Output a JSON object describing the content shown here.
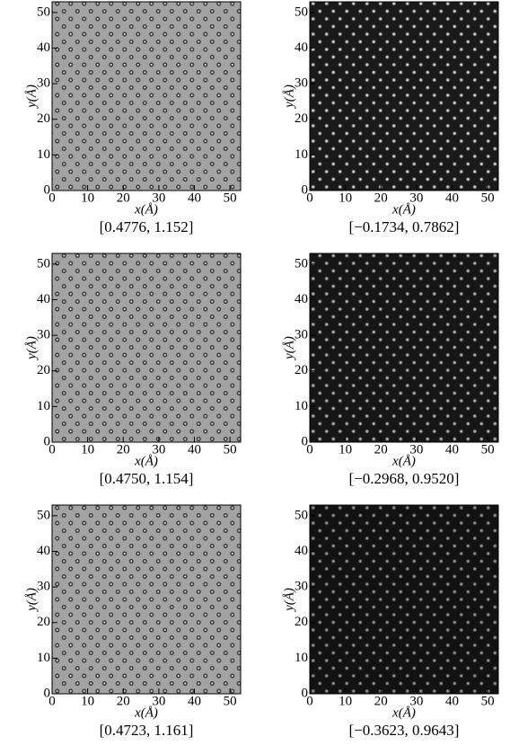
{
  "chart_data": [
    {
      "type": "image",
      "xlabel": "x(Å)",
      "ylabel": "y(Å)",
      "caption": "[0.4776, 1.152]",
      "xlim": [
        0,
        53
      ],
      "ylim": [
        0,
        53
      ],
      "xticks": [
        0,
        10,
        20,
        30,
        40,
        50
      ],
      "yticks": [
        0,
        10,
        20,
        30,
        40,
        50
      ]
    },
    {
      "type": "image",
      "xlabel": "x(Å)",
      "ylabel": "y(Å)",
      "caption": "[−0.1734, 0.7862]",
      "xlim": [
        0,
        53
      ],
      "ylim": [
        0,
        53
      ],
      "xticks": [
        0,
        10,
        20,
        30,
        40,
        50
      ],
      "yticks": [
        0,
        10,
        20,
        30,
        40,
        50
      ]
    },
    {
      "type": "image",
      "xlabel": "x(Å)",
      "ylabel": "y(Å)",
      "caption": "[0.4750, 1.154]",
      "xlim": [
        0,
        53
      ],
      "ylim": [
        0,
        53
      ],
      "xticks": [
        0,
        10,
        20,
        30,
        40,
        50
      ],
      "yticks": [
        0,
        10,
        20,
        30,
        40,
        50
      ]
    },
    {
      "type": "image",
      "xlabel": "x(Å)",
      "ylabel": "y(Å)",
      "caption": "[−0.2968, 0.9520]",
      "xlim": [
        0,
        53
      ],
      "ylim": [
        0,
        53
      ],
      "xticks": [
        0,
        10,
        20,
        30,
        40,
        50
      ],
      "yticks": [
        0,
        10,
        20,
        30,
        40,
        50
      ]
    },
    {
      "type": "image",
      "xlabel": "x(Å)",
      "ylabel": "y(Å)",
      "caption": "[0.4723, 1.161]",
      "xlim": [
        0,
        53
      ],
      "ylim": [
        0,
        53
      ],
      "xticks": [
        0,
        10,
        20,
        30,
        40,
        50
      ],
      "yticks": [
        0,
        10,
        20,
        30,
        40,
        50
      ]
    },
    {
      "type": "image",
      "xlabel": "x(Å)",
      "ylabel": "y(Å)",
      "caption": "[−0.3623, 0.9643]",
      "xlim": [
        0,
        53
      ],
      "ylim": [
        0,
        53
      ],
      "xticks": [
        0,
        10,
        20,
        30,
        40,
        50
      ],
      "yticks": [
        0,
        10,
        20,
        30,
        40,
        50
      ]
    }
  ]
}
